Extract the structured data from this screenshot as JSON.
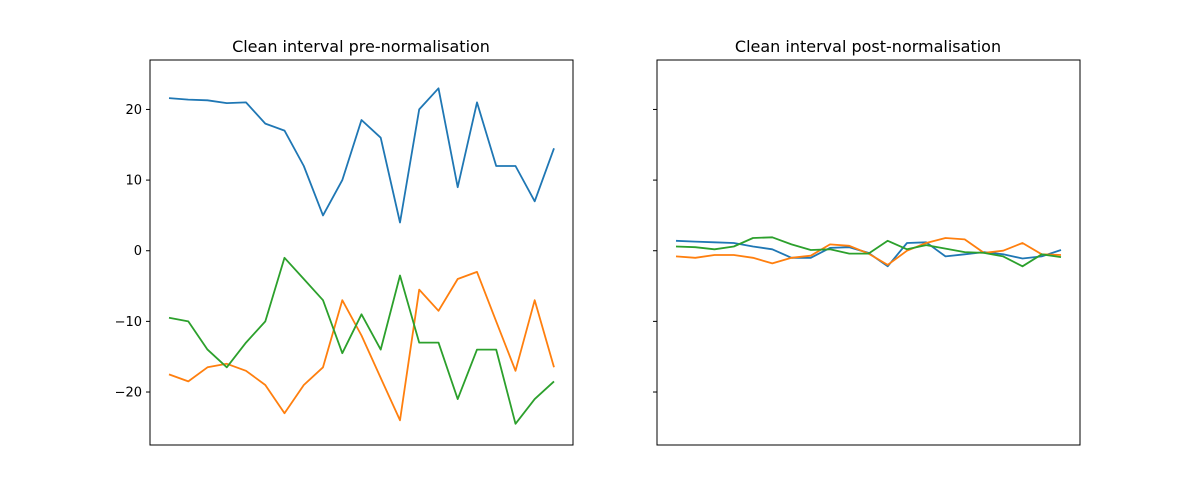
{
  "colors": {
    "series_1": "#1f77b4",
    "series_2": "#ff7f0e",
    "series_3": "#2ca02c",
    "axes": "#000000"
  },
  "chart_data": [
    {
      "type": "line",
      "title": "Clean interval pre-normalisation",
      "xlabel": "",
      "ylabel": "",
      "x_ticks_visible": false,
      "ylim": [
        -27.5,
        27
      ],
      "yticks": [
        -20,
        -10,
        0,
        10,
        20
      ],
      "ytick_labels": [
        "−20",
        "−10",
        "0",
        "10",
        "20"
      ],
      "grid": false,
      "legend": "none",
      "x": [
        0,
        5,
        10,
        15,
        20,
        25,
        30,
        35,
        40,
        45,
        50,
        55,
        60,
        65,
        70,
        75,
        80,
        85,
        90,
        95,
        100
      ],
      "series": [
        {
          "color": "#1f77b4",
          "values": [
            21.6,
            21.4,
            21.3,
            20.9,
            21.0,
            18.0,
            17.0,
            12.0,
            5.0,
            10.0,
            18.5,
            16.0,
            4.0,
            20.0,
            23.0,
            9.0,
            21.0,
            12.0,
            12.0,
            7.0,
            14.5
          ]
        },
        {
          "color": "#ff7f0e",
          "values": [
            -17.5,
            -18.5,
            -16.5,
            -16.0,
            -17.0,
            -19.0,
            -23.0,
            -19.0,
            -16.5,
            -7.0,
            -12.0,
            -18.0,
            -24.0,
            -5.5,
            -8.5,
            -4.0,
            -3.0,
            -10.0,
            -17.0,
            -7.0,
            -16.5
          ]
        },
        {
          "color": "#2ca02c",
          "values": [
            -9.5,
            -10.0,
            -14.0,
            -16.5,
            -13.0,
            -10.0,
            -1.0,
            -4.0,
            -7.0,
            -14.5,
            -9.0,
            -14.0,
            -3.5,
            -13.0,
            -13.0,
            -21.0,
            -14.0,
            -14.0,
            -24.5,
            -21.0,
            -18.5
          ]
        }
      ]
    },
    {
      "type": "line",
      "title": "Clean interval post-normalisation",
      "xlabel": "",
      "ylabel": "",
      "x_ticks_visible": false,
      "ylim": [
        -27.5,
        27
      ],
      "yticks": [
        -20,
        -10,
        0,
        10,
        20
      ],
      "ytick_labels": [
        "",
        "",
        "",
        "",
        ""
      ],
      "grid": false,
      "legend": "none",
      "x": [
        0,
        5,
        10,
        15,
        20,
        25,
        30,
        35,
        40,
        45,
        50,
        55,
        60,
        65,
        70,
        75,
        80,
        85,
        90,
        95,
        100
      ],
      "series": [
        {
          "color": "#1f77b4",
          "values": [
            1.4,
            1.3,
            1.2,
            1.1,
            0.6,
            0.2,
            -1.0,
            -1.0,
            0.4,
            0.5,
            -0.3,
            -2.2,
            1.1,
            1.2,
            -0.8,
            -0.5,
            -0.2,
            -0.5,
            -1.1,
            -0.8,
            0.1
          ]
        },
        {
          "color": "#ff7f0e",
          "values": [
            -0.8,
            -1.0,
            -0.6,
            -0.6,
            -1.0,
            -1.8,
            -1.0,
            -0.7,
            0.9,
            0.7,
            -0.4,
            -2.0,
            0.0,
            1.1,
            1.8,
            1.6,
            -0.3,
            0.0,
            1.1,
            -0.5,
            -0.6
          ]
        },
        {
          "color": "#2ca02c",
          "values": [
            0.6,
            0.5,
            0.2,
            0.6,
            1.8,
            1.9,
            0.9,
            0.1,
            0.2,
            -0.4,
            -0.4,
            1.4,
            0.2,
            0.8,
            0.3,
            -0.2,
            -0.3,
            -0.8,
            -2.2,
            -0.5,
            -0.9
          ]
        }
      ]
    }
  ]
}
